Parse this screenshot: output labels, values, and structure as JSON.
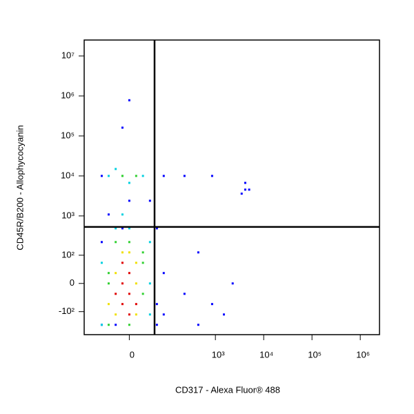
{
  "chart_data": {
    "type": "scatter",
    "x_label": "CD317 - Alexa Fluor® 488",
    "y_label": "CD45R/B200 - Allophycocyanin",
    "xscale": "biexponential",
    "yscale": "biexponential",
    "xlim": [
      -140,
      2500000
    ],
    "ylim": [
      -390,
      25000000
    ],
    "xticks": [
      0,
      {
        "value": 1000,
        "label": "10³"
      },
      {
        "value": 10000,
        "label": "10⁴"
      },
      {
        "value": 100000,
        "label": "10⁵"
      },
      {
        "value": 1000000,
        "label": "10⁶"
      }
    ],
    "yticks": [
      {
        "value": -100,
        "label": "-10²"
      },
      0,
      {
        "value": 100,
        "label": "10²"
      },
      {
        "value": 1000,
        "label": "10³"
      },
      {
        "value": 10000,
        "label": "10⁴"
      },
      {
        "value": 100000,
        "label": "10⁵"
      },
      {
        "value": 1000000,
        "label": "10⁶"
      },
      {
        "value": 10000000,
        "label": "10⁷"
      }
    ],
    "gates": {
      "x": 50,
      "y": 530
    },
    "series": [
      {
        "color": "#0000ff",
        "x": [
          -57,
          -57,
          57,
          82,
          228,
          442,
          855,
          2280,
          4150,
          4150,
          3500,
          5000,
          -38,
          0,
          38,
          82,
          228,
          -57,
          57,
          -11,
          57,
          855,
          -23,
          82,
          0,
          -11,
          442,
          1500
        ],
        "y": [
          -220,
          220,
          -61,
          26,
          -26,
          119,
          -61,
          0,
          4540,
          6700,
          3600,
          4540,
          1086,
          2394,
          2394,
          10000,
          10000,
          10000,
          488,
          488,
          -220,
          10000,
          -220,
          -119,
          780000,
          161000,
          -220,
          -119
        ]
      },
      {
        "color": "#00d0e0",
        "x": [
          -57,
          38,
          -57,
          38,
          0,
          -23,
          38,
          -38,
          -23,
          0,
          -11,
          23
        ],
        "y": [
          -220,
          0,
          61,
          -119,
          488,
          488,
          220,
          10000,
          14900,
          6700,
          1086,
          10000
        ]
      },
      {
        "color": "#30d030",
        "x": [
          -38,
          23,
          -38,
          23,
          -23,
          0,
          -11,
          -38,
          23,
          0,
          -11,
          11
        ],
        "y": [
          -220,
          -26,
          0,
          119,
          220,
          -220,
          10000,
          26,
          61,
          220,
          10000,
          10000
        ]
      },
      {
        "color": "#f0e000",
        "x": [
          -23,
          11,
          -23,
          11,
          0,
          -11,
          -38,
          11
        ],
        "y": [
          -119,
          0,
          26,
          61,
          119,
          119,
          -61,
          -119
        ]
      },
      {
        "color": "#e00000",
        "x": [
          -11,
          0,
          -11,
          0,
          -23,
          0,
          -11,
          11
        ],
        "y": [
          -61,
          -26,
          0,
          26,
          -26,
          -119,
          61,
          -61
        ]
      }
    ]
  }
}
